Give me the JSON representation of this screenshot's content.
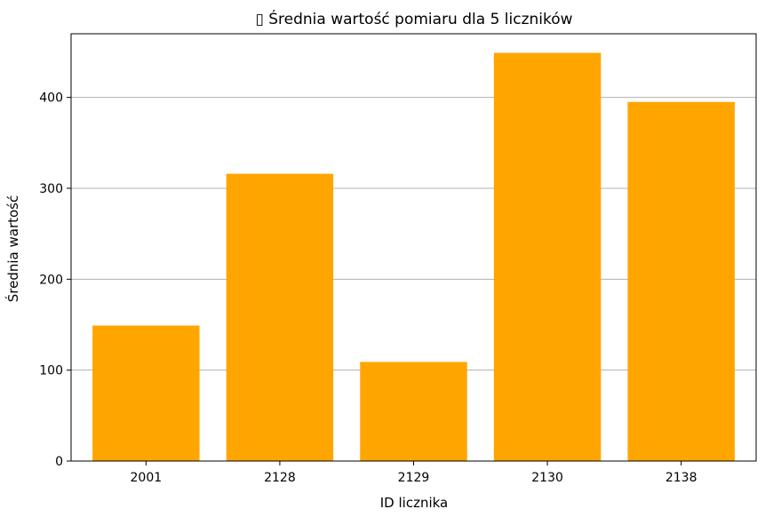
{
  "chart_data": {
    "type": "bar",
    "title": "▯ Średnia wartość pomiaru dla 5 liczników",
    "xlabel": "ID licznika",
    "ylabel": "Średnia wartość",
    "categories": [
      "2001",
      "2128",
      "2129",
      "2130",
      "2138"
    ],
    "values": [
      149,
      316,
      109,
      449,
      395
    ],
    "ylim": [
      0,
      470
    ],
    "yticks": [
      0,
      100,
      200,
      300,
      400
    ],
    "grid": "y",
    "bar_color": "#ffa500"
  }
}
